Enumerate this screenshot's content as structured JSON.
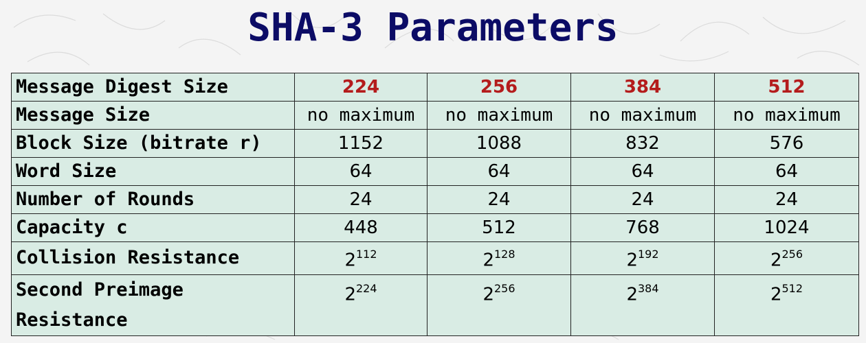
{
  "title": "SHA-3 Parameters",
  "columns": [
    "224",
    "256",
    "384",
    "512"
  ],
  "rows": [
    {
      "label": "Message Digest Size",
      "header": true
    },
    {
      "label": "Message Size",
      "values": [
        "no maximum",
        "no maximum",
        "no maximum",
        "no maximum"
      ]
    },
    {
      "label": "Block Size (bitrate r)",
      "values": [
        "1152",
        "1088",
        "832",
        "576"
      ]
    },
    {
      "label": "Word Size",
      "values": [
        "64",
        "64",
        "64",
        "64"
      ]
    },
    {
      "label": "Number of Rounds",
      "values": [
        "24",
        "24",
        "24",
        "24"
      ]
    },
    {
      "label": "Capacity c",
      "values": [
        "448",
        "512",
        "768",
        "1024"
      ]
    },
    {
      "label": "Collision Resistance",
      "base": "2",
      "exponents": [
        "112",
        "128",
        "192",
        "256"
      ]
    },
    {
      "label": "Second Preimage Resistance",
      "base": "2",
      "exponents": [
        "224",
        "256",
        "384",
        "512"
      ]
    }
  ],
  "colors": {
    "title": "#0c0c66",
    "header_values": "#b41c1c",
    "table_background": "#d9ece4",
    "page_background": "#f4f4f4"
  }
}
